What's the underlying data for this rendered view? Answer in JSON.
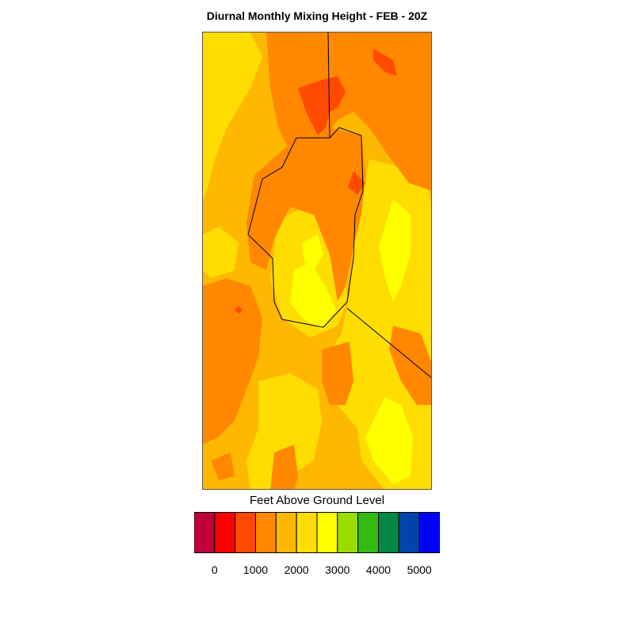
{
  "title": "Diurnal Monthly Mixing Height - FEB - 20Z",
  "legend": {
    "title": "Feet Above Ground Level",
    "colors": [
      "#c0003c",
      "#ff0000",
      "#ff4a00",
      "#ff8800",
      "#ffb800",
      "#ffdd00",
      "#ffff00",
      "#99dd00",
      "#33bb11",
      "#008844",
      "#0044aa",
      "#0000ff"
    ],
    "ticks": [
      "0",
      "1000",
      "2000",
      "3000",
      "4000",
      "5000"
    ]
  },
  "map_colors": {
    "level2": "#ff4a00",
    "level3": "#ff8800",
    "level4": "#ffb800",
    "level5": "#ffdd00",
    "level6": "#ffff00",
    "boundary": "#000000"
  }
}
